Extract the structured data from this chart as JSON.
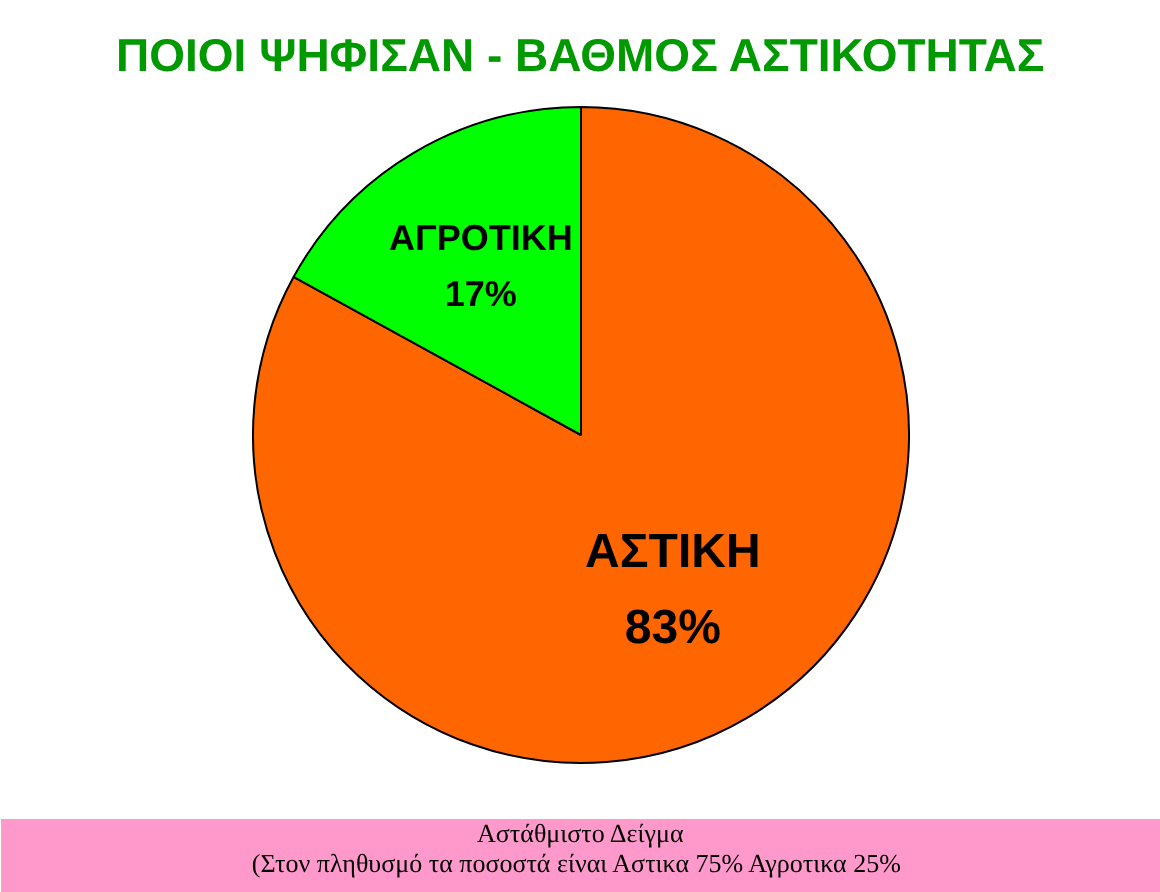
{
  "chart_data": {
    "type": "pie",
    "title": "ΠΟΙΟΙ ΨΗΦΙΣΑΝ - ΒΑΘΜΟΣ ΑΣΤΙΚΟΤΗΤΑΣ",
    "categories": [
      "ΑΣΤΙΚΗ",
      "ΑΓΡΟΤΙΚΗ"
    ],
    "values": [
      83,
      17
    ],
    "colors": [
      "#ff6600",
      "#00ff00"
    ],
    "value_labels": [
      "83%",
      "17%"
    ],
    "annotations": [
      "Αστάθμιστο Δείγμα",
      "(Στον πληθυσμό τα ποσοστά είναι  Αστικα 75% Αγροτικα 25%"
    ]
  }
}
